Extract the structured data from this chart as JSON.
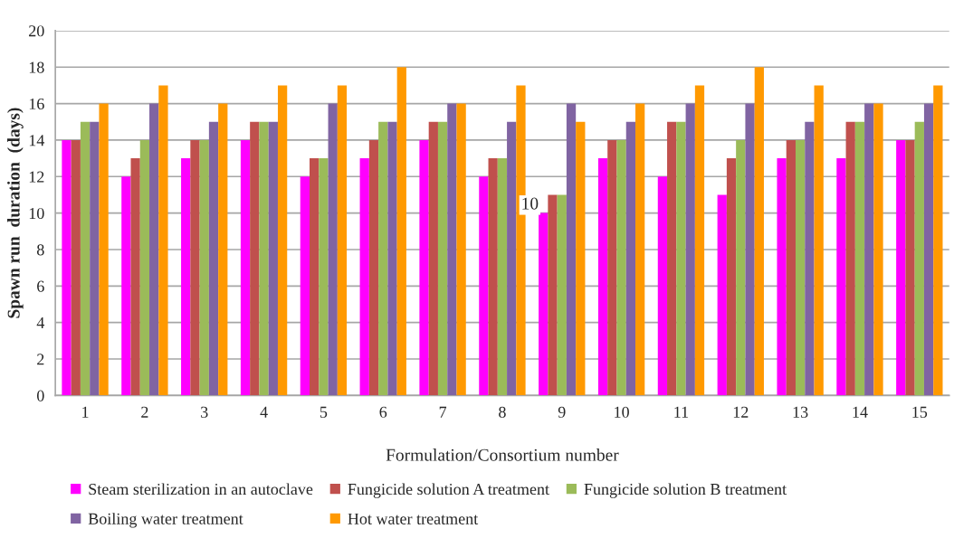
{
  "chart_data": {
    "type": "bar",
    "xlabel": "Formulation/Consortium number",
    "ylabel": "Spawn run  duration  (days)",
    "categories": [
      "1",
      "2",
      "3",
      "4",
      "5",
      "6",
      "7",
      "8",
      "9",
      "10",
      "11",
      "12",
      "13",
      "14",
      "15"
    ],
    "series": [
      {
        "name": "Steam sterilization in an autoclave",
        "color": "#ff00ff",
        "values": [
          14,
          12,
          13,
          14,
          12,
          13,
          14,
          12,
          10,
          13,
          12,
          11,
          13,
          13,
          14
        ]
      },
      {
        "name": "Fungicide solution A treatment",
        "color": "#c0504d",
        "values": [
          14,
          13,
          14,
          15,
          13,
          14,
          15,
          13,
          11,
          14,
          15,
          13,
          14,
          15,
          14
        ]
      },
      {
        "name": "Fungicide solution B treatment",
        "color": "#9bbb59",
        "values": [
          15,
          14,
          14,
          15,
          13,
          15,
          15,
          13,
          11,
          14,
          15,
          14,
          14,
          15,
          15
        ]
      },
      {
        "name": "Boiling water treatment",
        "color": "#8064a2",
        "values": [
          15,
          16,
          15,
          15,
          16,
          15,
          16,
          15,
          16,
          15,
          16,
          16,
          15,
          16,
          16
        ]
      },
      {
        "name": "Hot water treatment",
        "color": "#ff9900",
        "values": [
          16,
          17,
          16,
          17,
          17,
          18,
          16,
          17,
          15,
          16,
          17,
          18,
          17,
          16,
          17
        ]
      }
    ],
    "annotations": [
      {
        "text": "10",
        "x": "9",
        "y": 10
      }
    ],
    "ylim": [
      0,
      20
    ],
    "yticks": [
      0,
      2,
      4,
      6,
      8,
      10,
      12,
      14,
      16,
      18,
      20
    ],
    "grid": "y",
    "legend": "bottom"
  }
}
